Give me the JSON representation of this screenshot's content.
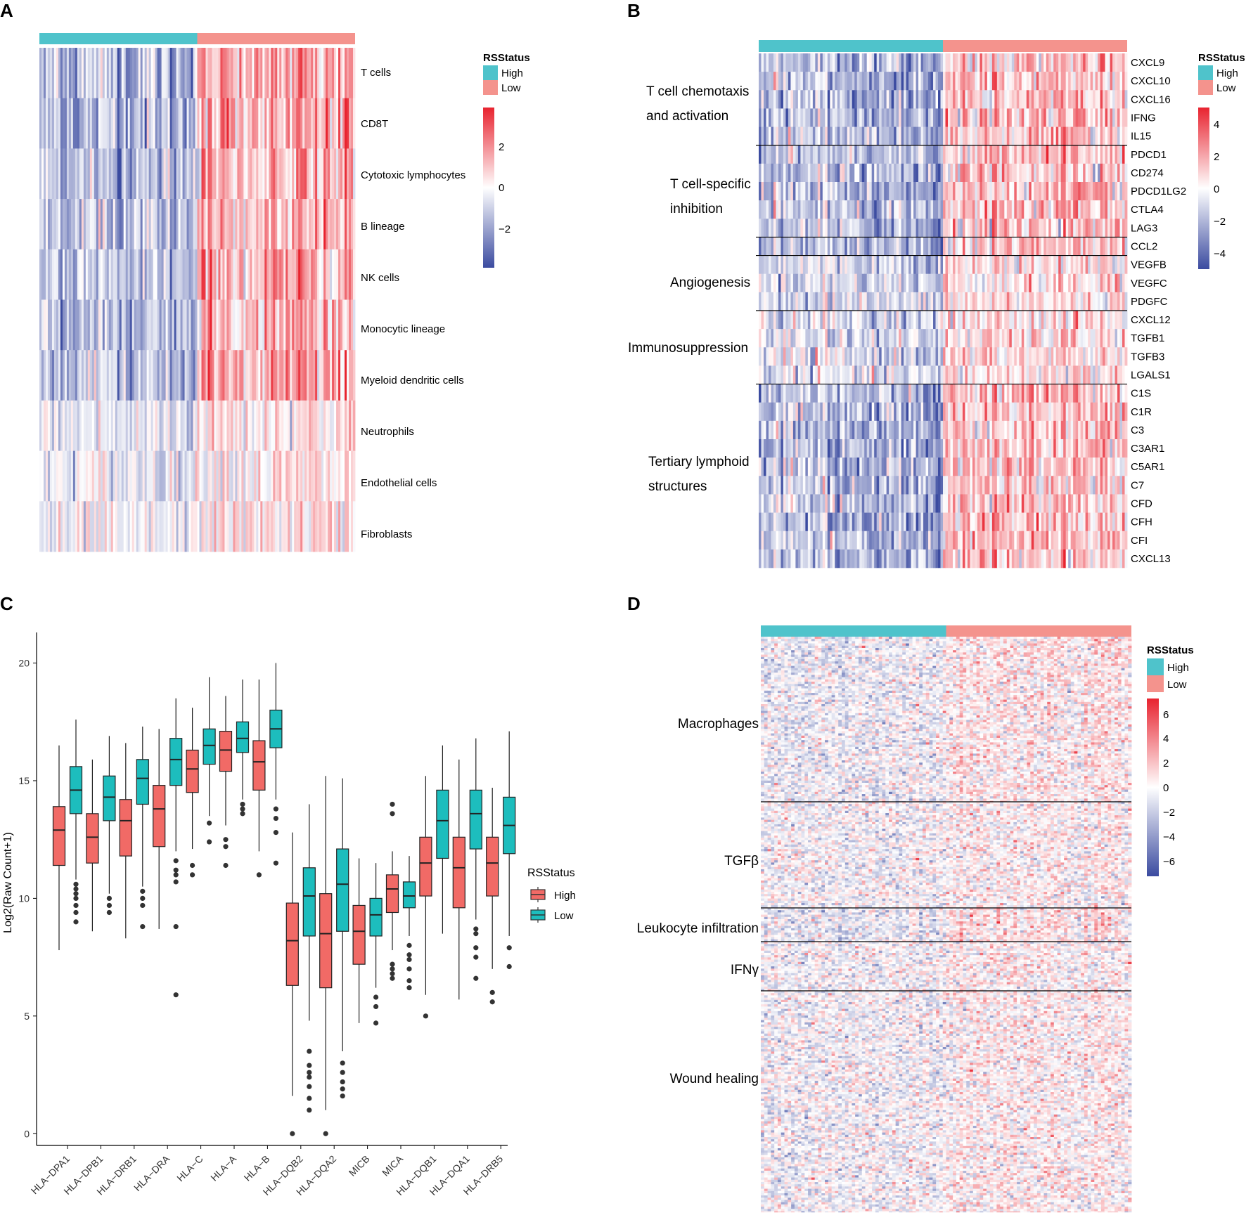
{
  "colors": {
    "high": "#4FC3CB",
    "low": "#F4938D",
    "heat_neg": "#3B4BA0",
    "heat_mid": "#FFFFFF",
    "heat_pos": "#E8232F",
    "box_high": "#F16A66",
    "box_low": "#1DBDBD"
  },
  "panels": {
    "A": {
      "letter": "A",
      "legend": {
        "title": "RSStatus",
        "high": "High",
        "low": "Low",
        "scale_ticks": [
          "2",
          "0",
          "−2"
        ]
      },
      "rows": [
        "T cells",
        "CD8T",
        "Cytotoxic lymphocytes",
        "B lineage",
        "NK cells",
        "Monocytic lineage",
        "Myeloid dendritic cells",
        "Neutrophils",
        "Endothelial cells",
        "Fibroblasts"
      ]
    },
    "B": {
      "letter": "B",
      "legend": {
        "title": "RSStatus",
        "high": "High",
        "low": "Low",
        "scale_ticks": [
          "4",
          "2",
          "0",
          "−2",
          "−4"
        ]
      },
      "genes": [
        "CXCL9",
        "CXCL10",
        "CXCL16",
        "IFNG",
        "IL15",
        "PDCD1",
        "CD274",
        "PDCD1LG2",
        "CTLA4",
        "LAG3",
        "CCL2",
        "VEGFB",
        "VEGFC",
        "PDGFC",
        "CXCL12",
        "TGFB1",
        "TGFB3",
        "LGALS1",
        "C1S",
        "C1R",
        "C3",
        "C3AR1",
        "C5AR1",
        "C7",
        "CFD",
        "CFH",
        "CFI",
        "CXCL13"
      ],
      "groups": [
        {
          "line1": "T cell chemotaxis",
          "line2": "and activation"
        },
        {
          "line1": "T cell-specific",
          "line2": "inhibition"
        },
        {
          "line1": "Angiogenesis",
          "line2": ""
        },
        {
          "line1": "Immunosuppression",
          "line2": ""
        },
        {
          "line1": "Tertiary lymphoid",
          "line2": "structures"
        }
      ]
    },
    "C": {
      "letter": "C"
    },
    "D": {
      "letter": "D",
      "legend": {
        "title": "RSStatus",
        "high": "High",
        "low": "Low",
        "scale_ticks": [
          "6",
          "4",
          "2",
          "0",
          "−2",
          "−4",
          "−6"
        ]
      },
      "groups": [
        "Macrophages",
        "TGFβ",
        "Leukocyte infiltration",
        "IFNγ",
        "Wound healing"
      ]
    }
  },
  "chart_data": [
    {
      "panel": "A",
      "type": "heatmap",
      "title": "",
      "rows": [
        "T cells",
        "CD8T",
        "Cytotoxic lymphocytes",
        "B lineage",
        "NK cells",
        "Monocytic lineage",
        "Myeloid dendritic cells",
        "Neutrophils",
        "Endothelial cells",
        "Fibroblasts"
      ],
      "column_annotation": [
        "High",
        "Low"
      ],
      "legend_title": "RSStatus",
      "scale_range": [
        -3.5,
        3.5
      ]
    },
    {
      "panel": "B",
      "type": "heatmap",
      "rows": [
        "CXCL9",
        "CXCL10",
        "CXCL16",
        "IFNG",
        "IL15",
        "PDCD1",
        "CD274",
        "PDCD1LG2",
        "CTLA4",
        "LAG3",
        "CCL2",
        "VEGFB",
        "VEGFC",
        "PDGFC",
        "CXCL12",
        "TGFB1",
        "TGFB3",
        "LGALS1",
        "C1S",
        "C1R",
        "C3",
        "C3AR1",
        "C5AR1",
        "C7",
        "CFD",
        "CFH",
        "CFI",
        "CXCL13"
      ],
      "row_groups": [
        "T cell chemotaxis and activation",
        "T cell-specific inhibition",
        "Angiogenesis",
        "Immunosuppression",
        "Tertiary lymphoid structures"
      ],
      "column_annotation": [
        "High",
        "Low"
      ],
      "legend_title": "RSStatus",
      "scale_range": [
        -5,
        5
      ]
    },
    {
      "panel": "C",
      "type": "box",
      "categories": [
        "HLA−DPA1",
        "HLA−DPB1",
        "HLA−DRB1",
        "HLA−DRA",
        "HLA−C",
        "HLA−A",
        "HLA−B",
        "HLA−DQB2",
        "HLA−DQA2",
        "MICB",
        "MICA",
        "HLA−DQB1",
        "HLA−DQA1",
        "HLA−DRB5"
      ],
      "ylabel": "Log2(Raw Count+1)",
      "xlabel": "",
      "ylim": [
        -0.5,
        21.3
      ],
      "yticks": [
        0,
        5,
        10,
        15,
        20
      ],
      "legend_title": "RSStatus",
      "series": [
        {
          "name": "High",
          "boxes": [
            {
              "wlo": 7.8,
              "q1": 11.4,
              "med": 12.9,
              "q3": 13.9,
              "whi": 16.5,
              "out": []
            },
            {
              "wlo": 8.6,
              "q1": 11.5,
              "med": 12.6,
              "q3": 13.6,
              "whi": 15.9,
              "out": []
            },
            {
              "wlo": 8.3,
              "q1": 11.8,
              "med": 13.3,
              "q3": 14.2,
              "whi": 16.6,
              "out": []
            },
            {
              "wlo": 8.7,
              "q1": 12.2,
              "med": 13.8,
              "q3": 14.8,
              "whi": 17.2,
              "out": []
            },
            {
              "wlo": 12.1,
              "q1": 14.5,
              "med": 15.5,
              "q3": 16.3,
              "whi": 18.1,
              "out": [
                11.4,
                11.0
              ]
            },
            {
              "wlo": 13.1,
              "q1": 15.4,
              "med": 16.3,
              "q3": 17.1,
              "whi": 18.6,
              "out": [
                12.5,
                12.2,
                11.4
              ]
            },
            {
              "wlo": 12.0,
              "q1": 14.6,
              "med": 15.8,
              "q3": 16.7,
              "whi": 19.3,
              "out": [
                11.0
              ]
            },
            {
              "wlo": 1.6,
              "q1": 6.3,
              "med": 8.2,
              "q3": 9.8,
              "whi": 12.8,
              "out": [
                0.0
              ]
            },
            {
              "wlo": 1.0,
              "q1": 6.2,
              "med": 8.5,
              "q3": 10.2,
              "whi": 15.2,
              "out": [
                0.0
              ]
            },
            {
              "wlo": 4.7,
              "q1": 7.2,
              "med": 8.6,
              "q3": 9.7,
              "whi": 11.7,
              "out": []
            },
            {
              "wlo": 7.8,
              "q1": 9.4,
              "med": 10.4,
              "q3": 11.0,
              "whi": 12.0,
              "out": [
                14.0,
                13.6,
                7.2,
                7.0,
                6.8,
                6.6
              ]
            },
            {
              "wlo": 5.9,
              "q1": 10.1,
              "med": 11.5,
              "q3": 12.6,
              "whi": 15.2,
              "out": [
                5.0
              ]
            },
            {
              "wlo": 5.7,
              "q1": 9.6,
              "med": 11.3,
              "q3": 12.6,
              "whi": 15.9,
              "out": []
            },
            {
              "wlo": 7.0,
              "q1": 10.1,
              "med": 11.5,
              "q3": 12.6,
              "whi": 14.7,
              "out": [
                6.0,
                5.6
              ]
            }
          ]
        },
        {
          "name": "Low",
          "boxes": [
            {
              "wlo": 10.8,
              "q1": 13.6,
              "med": 14.6,
              "q3": 15.6,
              "whi": 17.6,
              "out": [
                10.6,
                10.4,
                10.2,
                10.0,
                9.7,
                9.4,
                9.0
              ]
            },
            {
              "wlo": 10.2,
              "q1": 13.3,
              "med": 14.3,
              "q3": 15.2,
              "whi": 16.9,
              "out": [
                10.0,
                9.7,
                9.4
              ]
            },
            {
              "wlo": 10.5,
              "q1": 14.0,
              "med": 15.1,
              "q3": 15.9,
              "whi": 17.3,
              "out": [
                10.3,
                10.0,
                9.7,
                8.8
              ]
            },
            {
              "wlo": 12.0,
              "q1": 14.8,
              "med": 15.9,
              "q3": 16.8,
              "whi": 18.5,
              "out": [
                11.6,
                11.2,
                11.0,
                10.7,
                8.8,
                5.9
              ]
            },
            {
              "wlo": 13.5,
              "q1": 15.7,
              "med": 16.5,
              "q3": 17.2,
              "whi": 19.4,
              "out": [
                13.2,
                12.4
              ]
            },
            {
              "wlo": 14.2,
              "q1": 16.2,
              "med": 16.8,
              "q3": 17.5,
              "whi": 19.3,
              "out": [
                14.0,
                13.8,
                13.6
              ]
            },
            {
              "wlo": 14.2,
              "q1": 16.4,
              "med": 17.2,
              "q3": 18.0,
              "whi": 20.0,
              "out": [
                13.8,
                13.4,
                12.8,
                11.5
              ]
            },
            {
              "wlo": 4.8,
              "q1": 8.4,
              "med": 10.1,
              "q3": 11.3,
              "whi": 14.0,
              "out": [
                3.5,
                2.9,
                2.6,
                2.4,
                2.0,
                1.5,
                1.0
              ]
            },
            {
              "wlo": 3.5,
              "q1": 8.6,
              "med": 10.6,
              "q3": 12.1,
              "whi": 15.1,
              "out": [
                3.0,
                2.6,
                2.2,
                1.9,
                1.6
              ]
            },
            {
              "wlo": 6.2,
              "q1": 8.4,
              "med": 9.3,
              "q3": 10.0,
              "whi": 11.5,
              "out": [
                5.8,
                5.4,
                4.7
              ]
            },
            {
              "wlo": 8.4,
              "q1": 9.6,
              "med": 10.1,
              "q3": 10.7,
              "whi": 11.8,
              "out": [
                8.0,
                7.6,
                7.4,
                7.0,
                6.5,
                6.2
              ]
            },
            {
              "wlo": 8.5,
              "q1": 11.7,
              "med": 13.3,
              "q3": 14.6,
              "whi": 16.5,
              "out": []
            },
            {
              "wlo": 9.1,
              "q1": 12.1,
              "med": 13.6,
              "q3": 14.6,
              "whi": 16.8,
              "out": [
                8.7,
                8.5,
                7.9,
                7.5,
                6.6
              ]
            },
            {
              "wlo": 8.4,
              "q1": 11.9,
              "med": 13.1,
              "q3": 14.3,
              "whi": 17.1,
              "out": [
                7.9,
                7.1
              ]
            }
          ]
        }
      ]
    },
    {
      "panel": "D",
      "type": "heatmap",
      "row_groups": [
        "Macrophages",
        "TGFβ",
        "Leukocyte infiltration",
        "IFNγ",
        "Wound healing"
      ],
      "column_annotation": [
        "High",
        "Low"
      ],
      "legend_title": "RSStatus",
      "scale_range": [
        -7,
        7
      ]
    }
  ]
}
